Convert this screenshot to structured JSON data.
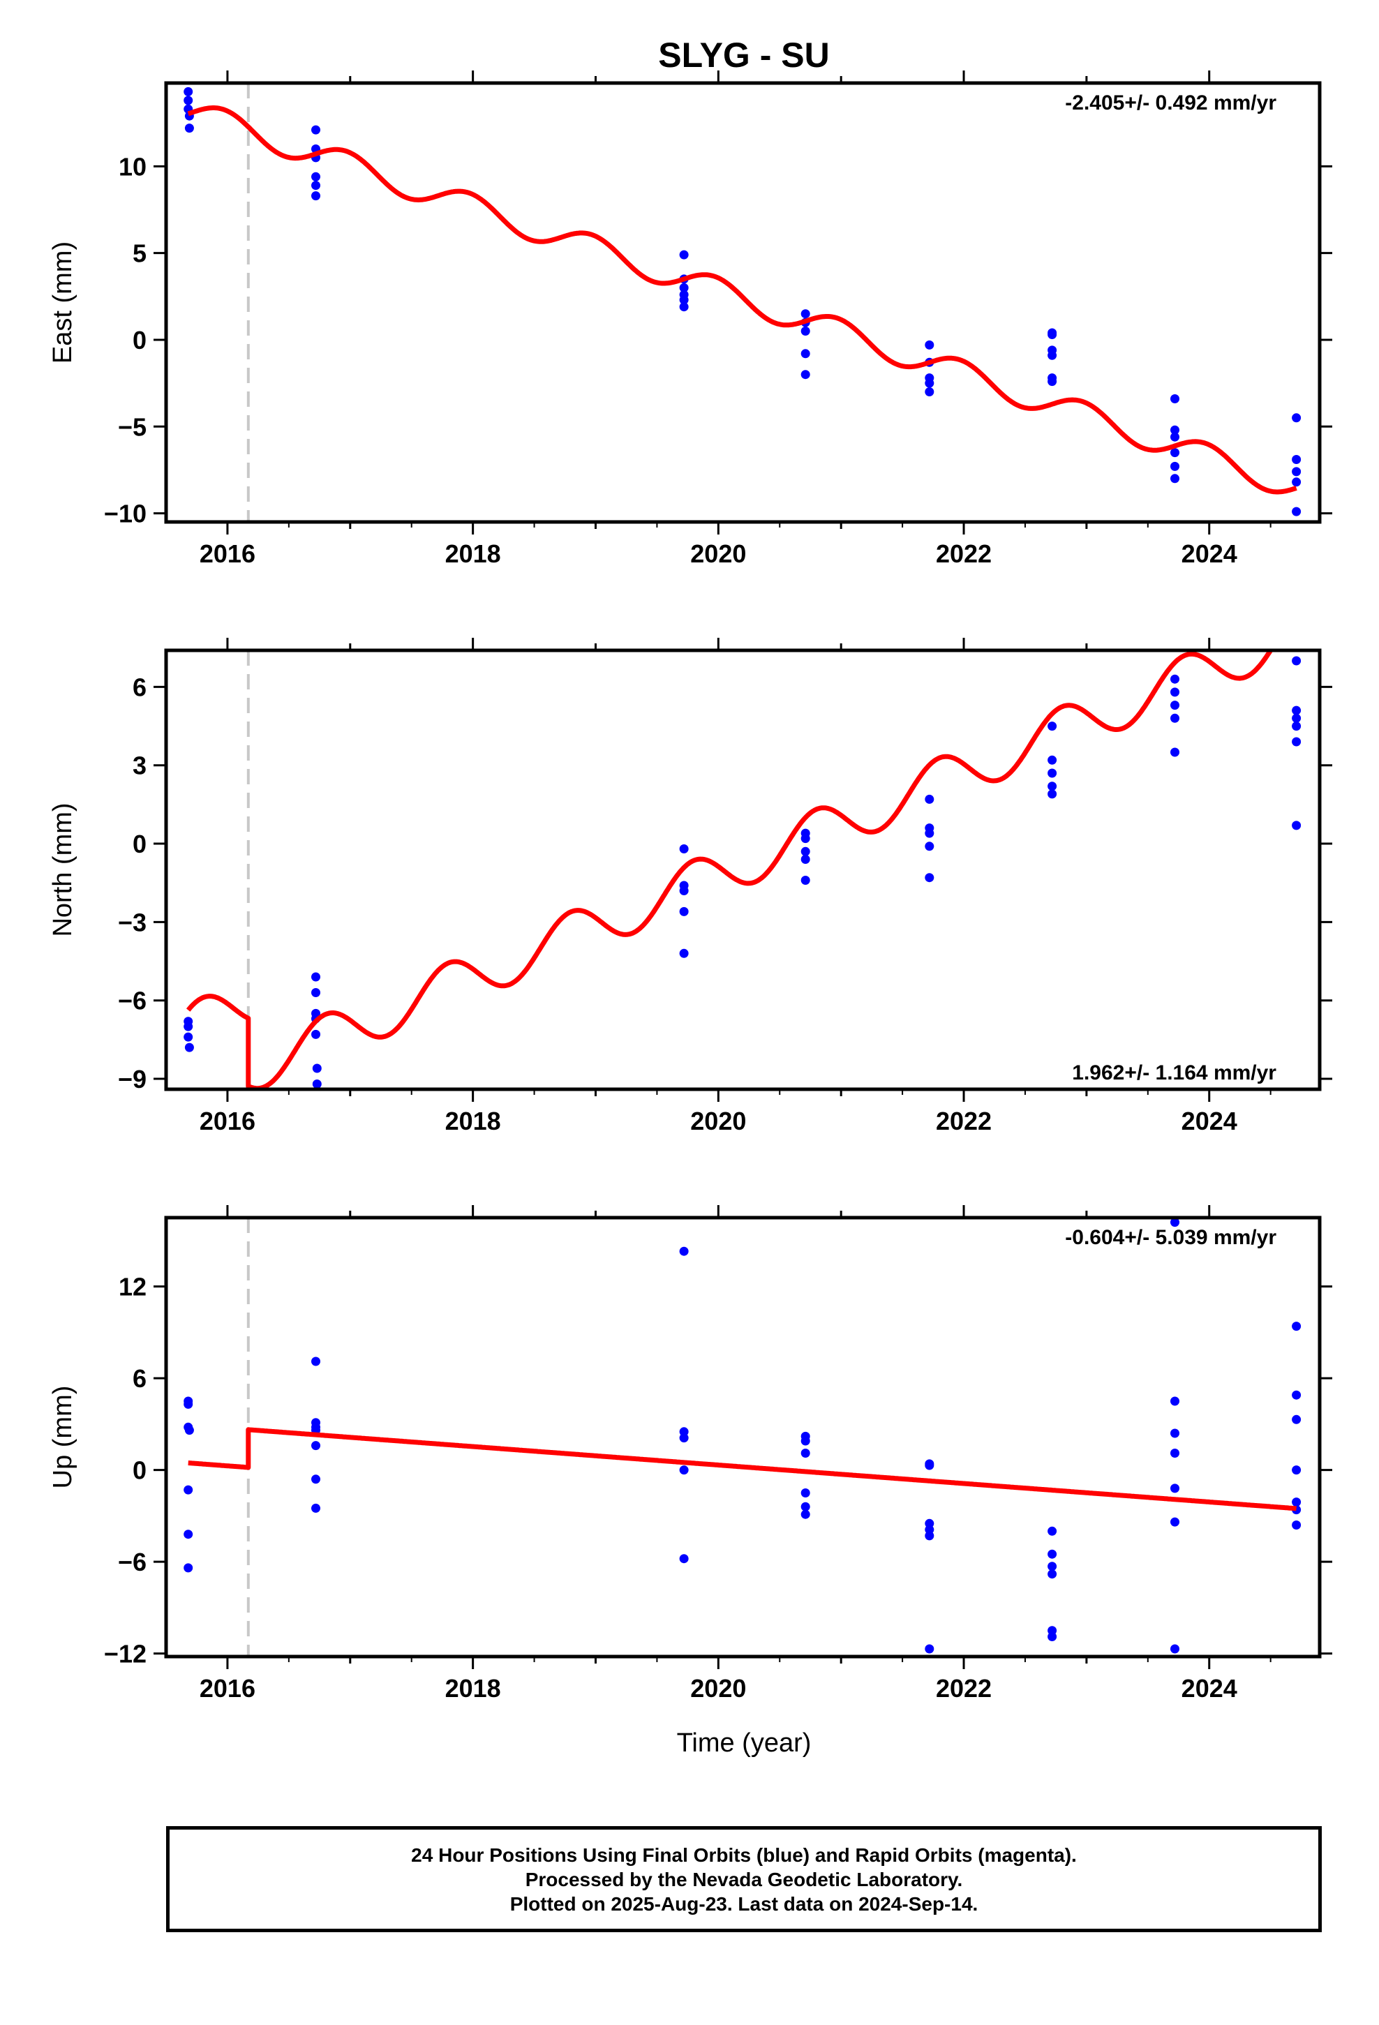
{
  "figure": {
    "title": "SLYG - SU",
    "xlabel": "Time (year)"
  },
  "colors": {
    "fit": "#ff0000",
    "final_orbits": "#0000ff",
    "step": "#c8c8c8",
    "frame": "#000000"
  },
  "footer": {
    "line1": "24 Hour Positions Using Final Orbits (blue) and Rapid Orbits (magenta).",
    "line2": "Processed by the Nevada Geodetic Laboratory.",
    "line3": "Plotted on 2025-Aug-23. Last data on 2024-Sep-14."
  },
  "chart_data": [
    {
      "type": "scatter",
      "name": "east",
      "ylabel": "East (mm)",
      "rate_label": "-2.405+/- 0.492 mm/yr",
      "rate_position": "top-right",
      "xlim": [
        2015.5,
        2024.9
      ],
      "ylim": [
        -10.5,
        14.8
      ],
      "x_ticks": [
        2016,
        2018,
        2020,
        2022,
        2024
      ],
      "y_ticks": [
        -10,
        -5,
        0,
        5,
        10
      ],
      "step_epoch": 2016.17,
      "fit": {
        "rate": -2.405,
        "intercept_2016": 12.45,
        "offset_at_step": 0,
        "annual_amplitude": 0.75,
        "annual_phase": 0.72
      },
      "points": [
        [
          2015.68,
          14.3
        ],
        [
          2015.68,
          13.8
        ],
        [
          2015.68,
          13.3
        ],
        [
          2015.69,
          12.9
        ],
        [
          2015.69,
          12.2
        ],
        [
          2016.72,
          12.1
        ],
        [
          2016.72,
          11.0
        ],
        [
          2016.72,
          10.5
        ],
        [
          2016.72,
          9.4
        ],
        [
          2016.72,
          8.9
        ],
        [
          2016.72,
          8.3
        ],
        [
          2019.72,
          4.9
        ],
        [
          2019.72,
          3.5
        ],
        [
          2019.72,
          3.0
        ],
        [
          2019.72,
          2.6
        ],
        [
          2019.72,
          2.3
        ],
        [
          2019.72,
          1.9
        ],
        [
          2020.71,
          1.5
        ],
        [
          2020.71,
          1.0
        ],
        [
          2020.71,
          0.5
        ],
        [
          2020.71,
          -0.8
        ],
        [
          2020.71,
          -2.0
        ],
        [
          2021.72,
          -0.3
        ],
        [
          2021.72,
          -1.3
        ],
        [
          2021.72,
          -2.2
        ],
        [
          2021.72,
          -2.5
        ],
        [
          2021.72,
          -3.0
        ],
        [
          2022.72,
          0.4
        ],
        [
          2022.72,
          0.3
        ],
        [
          2022.72,
          -0.6
        ],
        [
          2022.72,
          -0.9
        ],
        [
          2022.72,
          -2.2
        ],
        [
          2022.72,
          -2.4
        ],
        [
          2023.72,
          -3.4
        ],
        [
          2023.72,
          -5.2
        ],
        [
          2023.72,
          -5.6
        ],
        [
          2023.72,
          -6.5
        ],
        [
          2023.72,
          -7.3
        ],
        [
          2023.72,
          -8.0
        ],
        [
          2024.71,
          -4.5
        ],
        [
          2024.71,
          -6.9
        ],
        [
          2024.71,
          -7.6
        ],
        [
          2024.71,
          -8.2
        ],
        [
          2024.71,
          -9.9
        ]
      ]
    },
    {
      "type": "scatter",
      "name": "north",
      "ylabel": "North (mm)",
      "rate_label": "1.962+/- 1.164 mm/yr",
      "rate_position": "bottom-right",
      "xlim": [
        2015.5,
        2024.9
      ],
      "ylim": [
        -9.4,
        7.4
      ],
      "x_ticks": [
        2016,
        2018,
        2020,
        2022,
        2024
      ],
      "y_ticks": [
        -9,
        -6,
        -3,
        0,
        3,
        6
      ],
      "step_epoch": 2016.17,
      "fit": {
        "rate": 1.962,
        "intercept_2016": -6.4,
        "offset_at_step": -2.6,
        "annual_amplitude": 0.9,
        "annual_phase": 0.55
      },
      "points": [
        [
          2015.68,
          -6.8
        ],
        [
          2015.68,
          -7.0
        ],
        [
          2015.68,
          -7.4
        ],
        [
          2015.69,
          -7.8
        ],
        [
          2016.72,
          -5.1
        ],
        [
          2016.72,
          -5.7
        ],
        [
          2016.72,
          -6.5
        ],
        [
          2016.72,
          -6.7
        ],
        [
          2016.72,
          -7.3
        ],
        [
          2016.73,
          -8.6
        ],
        [
          2016.73,
          -9.2
        ],
        [
          2019.72,
          -0.2
        ],
        [
          2019.72,
          -1.6
        ],
        [
          2019.72,
          -1.8
        ],
        [
          2019.72,
          -2.6
        ],
        [
          2019.72,
          -4.2
        ],
        [
          2020.71,
          0.4
        ],
        [
          2020.71,
          0.2
        ],
        [
          2020.71,
          -0.3
        ],
        [
          2020.71,
          -0.6
        ],
        [
          2020.71,
          -1.4
        ],
        [
          2021.72,
          1.7
        ],
        [
          2021.72,
          0.6
        ],
        [
          2021.72,
          0.4
        ],
        [
          2021.72,
          -0.1
        ],
        [
          2021.72,
          -1.3
        ],
        [
          2022.72,
          4.5
        ],
        [
          2022.72,
          3.2
        ],
        [
          2022.72,
          2.7
        ],
        [
          2022.72,
          2.2
        ],
        [
          2022.72,
          1.9
        ],
        [
          2023.72,
          6.3
        ],
        [
          2023.72,
          5.8
        ],
        [
          2023.72,
          5.3
        ],
        [
          2023.72,
          4.8
        ],
        [
          2023.72,
          3.5
        ],
        [
          2024.71,
          7.0
        ],
        [
          2024.71,
          5.1
        ],
        [
          2024.71,
          4.8
        ],
        [
          2024.71,
          4.5
        ],
        [
          2024.71,
          3.9
        ],
        [
          2024.71,
          0.7
        ]
      ]
    },
    {
      "type": "scatter",
      "name": "up",
      "ylabel": "Up (mm)",
      "rate_label": "-0.604+/- 5.039 mm/yr",
      "rate_position": "top-right",
      "xlim": [
        2015.5,
        2024.9
      ],
      "ylim": [
        -12.2,
        16.5
      ],
      "x_ticks": [
        2016,
        2018,
        2020,
        2022,
        2024
      ],
      "y_ticks": [
        -12,
        -6,
        0,
        6,
        12
      ],
      "step_epoch": 2016.17,
      "fit": {
        "rate": -0.604,
        "intercept_2016": 0.27,
        "offset_at_step": 2.47,
        "annual_amplitude": 0,
        "annual_phase": 0
      },
      "points": [
        [
          2015.68,
          4.5
        ],
        [
          2015.68,
          4.3
        ],
        [
          2015.68,
          2.8
        ],
        [
          2015.69,
          2.6
        ],
        [
          2015.68,
          -1.3
        ],
        [
          2015.68,
          -4.2
        ],
        [
          2015.68,
          -6.4
        ],
        [
          2016.72,
          7.1
        ],
        [
          2016.72,
          3.1
        ],
        [
          2016.72,
          2.8
        ],
        [
          2016.72,
          2.6
        ],
        [
          2016.72,
          1.6
        ],
        [
          2016.72,
          -0.6
        ],
        [
          2016.72,
          -2.5
        ],
        [
          2019.72,
          14.3
        ],
        [
          2019.72,
          2.5
        ],
        [
          2019.72,
          2.1
        ],
        [
          2019.72,
          0.0
        ],
        [
          2019.72,
          -5.8
        ],
        [
          2020.71,
          2.2
        ],
        [
          2020.71,
          1.9
        ],
        [
          2020.71,
          1.1
        ],
        [
          2020.71,
          -1.5
        ],
        [
          2020.71,
          -2.4
        ],
        [
          2020.71,
          -2.9
        ],
        [
          2021.72,
          0.4
        ],
        [
          2021.72,
          0.3
        ],
        [
          2021.72,
          -3.5
        ],
        [
          2021.72,
          -3.9
        ],
        [
          2021.72,
          -4.3
        ],
        [
          2021.72,
          -11.7
        ],
        [
          2022.72,
          -4.0
        ],
        [
          2022.72,
          -5.5
        ],
        [
          2022.72,
          -6.3
        ],
        [
          2022.72,
          -6.8
        ],
        [
          2022.72,
          -10.5
        ],
        [
          2022.72,
          -10.9
        ],
        [
          2023.72,
          16.2
        ],
        [
          2023.72,
          4.5
        ],
        [
          2023.72,
          2.4
        ],
        [
          2023.72,
          1.1
        ],
        [
          2023.72,
          -1.2
        ],
        [
          2023.72,
          -3.4
        ],
        [
          2023.72,
          -11.7
        ],
        [
          2024.71,
          9.4
        ],
        [
          2024.71,
          4.9
        ],
        [
          2024.71,
          3.3
        ],
        [
          2024.71,
          0.0
        ],
        [
          2024.71,
          -2.1
        ],
        [
          2024.71,
          -2.6
        ],
        [
          2024.71,
          -3.6
        ]
      ]
    }
  ]
}
